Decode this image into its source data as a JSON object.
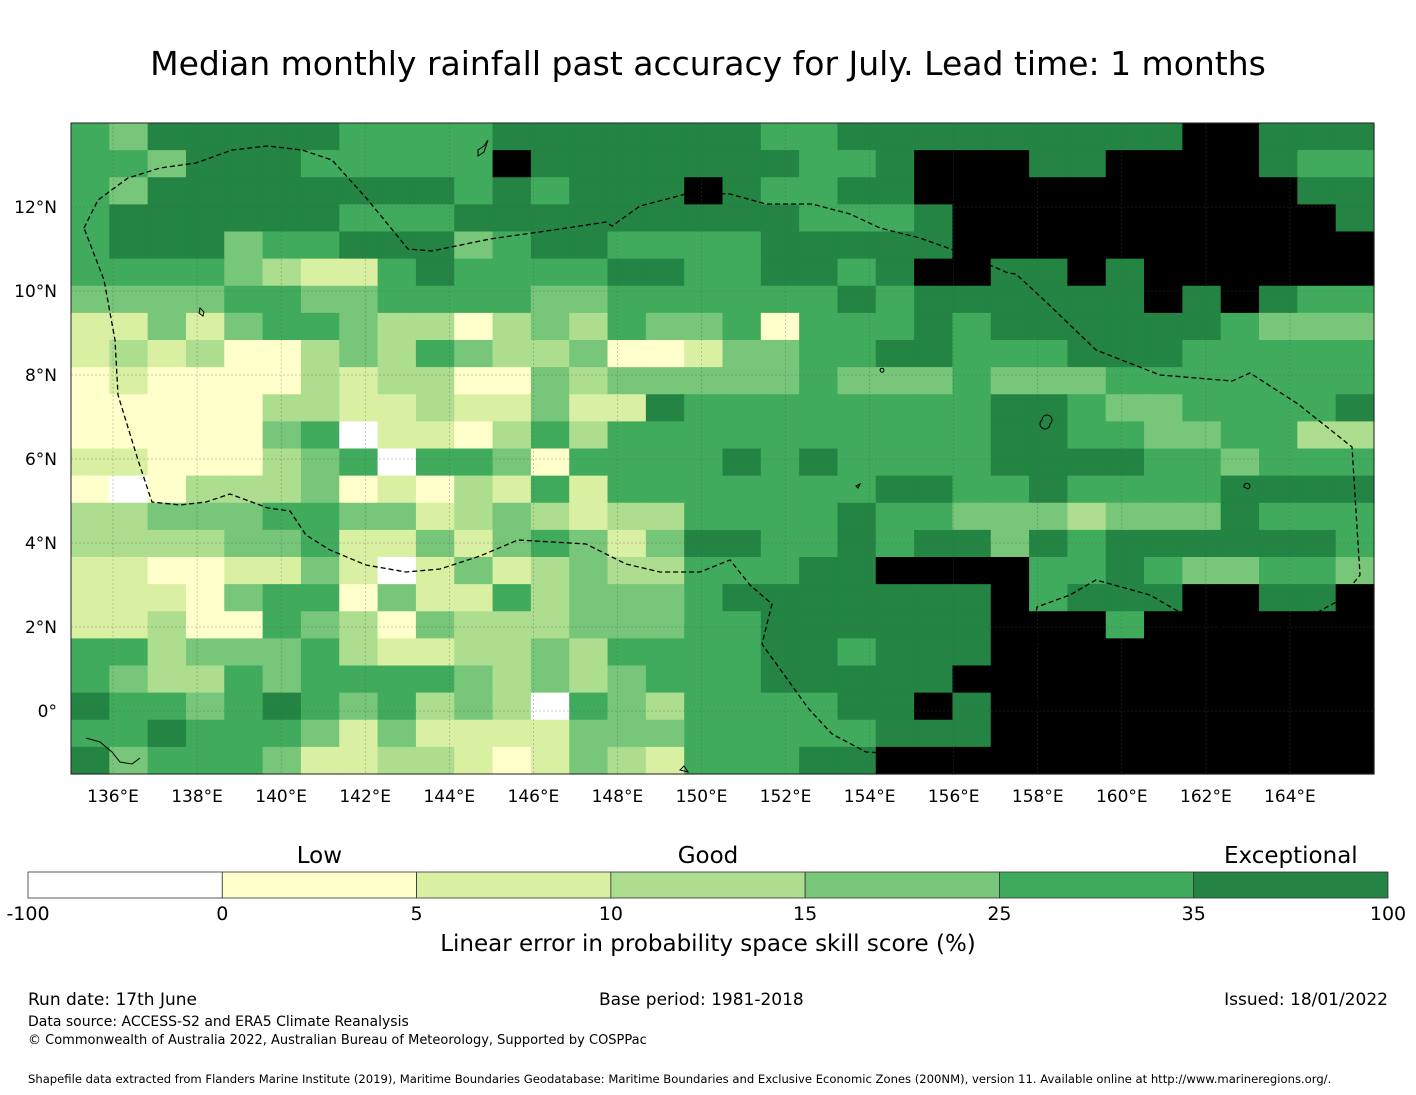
{
  "title": "Median monthly rainfall past accuracy for July. Lead time: 1 months",
  "map": {
    "lon_range": [
      135.0,
      166.0
    ],
    "lat_range": [
      -1.5,
      14.0
    ],
    "cell_size_deg": 0.833,
    "lon_ticks": [
      "136°E",
      "138°E",
      "140°E",
      "142°E",
      "144°E",
      "146°E",
      "148°E",
      "150°E",
      "152°E",
      "154°E",
      "156°E",
      "158°E",
      "160°E",
      "162°E",
      "164°E"
    ],
    "lat_ticks": [
      "12°N",
      "10°N",
      "8°N",
      "6°N",
      "4°N",
      "2°N",
      "0°"
    ],
    "grid_rows_north_to_south": [
      "5466666555566666665566666666677666",
      "5546665555576666666556777667777655",
      "5466666666565666765566777777777766",
      "5666666555666666666555677777777776",
      "5666455666456655556666677777777777",
      "5555432256555566556656776676777777",
      "4444554455554455555565666666767655",
      "2242455433134354451555656666665444",
      "2323113435433411244556655566655555",
      "1211113233114344444544454445555555",
      "1111133223224226555555556654455556",
      "1111145022135355555555556655445533",
      "2211134505541555565655556666554555",
      "1013334121325255555556655655556666",
      "3344455442343233555565544434446555",
      "3333445224245424665565664656666665",
      "2211224202423433555667777556544554",
      "2221455142253444566666667566677667",
      "2231154314333444556666667775777777",
      "5534445322334355556656667777777777",
      "5433545555434345556666677777777777",
      "6554565453430543555566767777777777",
      "5565554242222444555556667777777777",
      "6455542233212432555667777777777777"
    ]
  },
  "colorbar": {
    "title": "Linear error in probability space skill score (%)",
    "tick_labels": [
      "-100",
      "0",
      "5",
      "10",
      "15",
      "25",
      "35",
      "100"
    ],
    "colors": [
      "#ffffff",
      "#ffffcc",
      "#d9f0a3",
      "#addd8e",
      "#78c679",
      "#41ab5d",
      "#238443"
    ],
    "categories": [
      {
        "label": "Low",
        "position": "0-5"
      },
      {
        "label": "Good",
        "position": "10-15"
      },
      {
        "label": "Exceptional",
        "position": "35-100"
      }
    ]
  },
  "footer": {
    "run_date": "Run date: 17th June",
    "base_period": "Base period: 1981-2018",
    "issued": "Issued: 18/01/2022",
    "data_source": "Data source: ACCESS-S2 and ERA5 Climate Reanalysis",
    "copyright": "© Commonwealth of Australia 2022, Australian Bureau of Meteorology, Supported by COSPPac",
    "shapefile": "Shapefile data extracted from Flanders Marine Institute (2019), Maritime Boundaries Geodatabase: Maritime Boundaries and Exclusive Economic Zones (200NM), version 11. Available online at http://www.marineregions.org/."
  }
}
